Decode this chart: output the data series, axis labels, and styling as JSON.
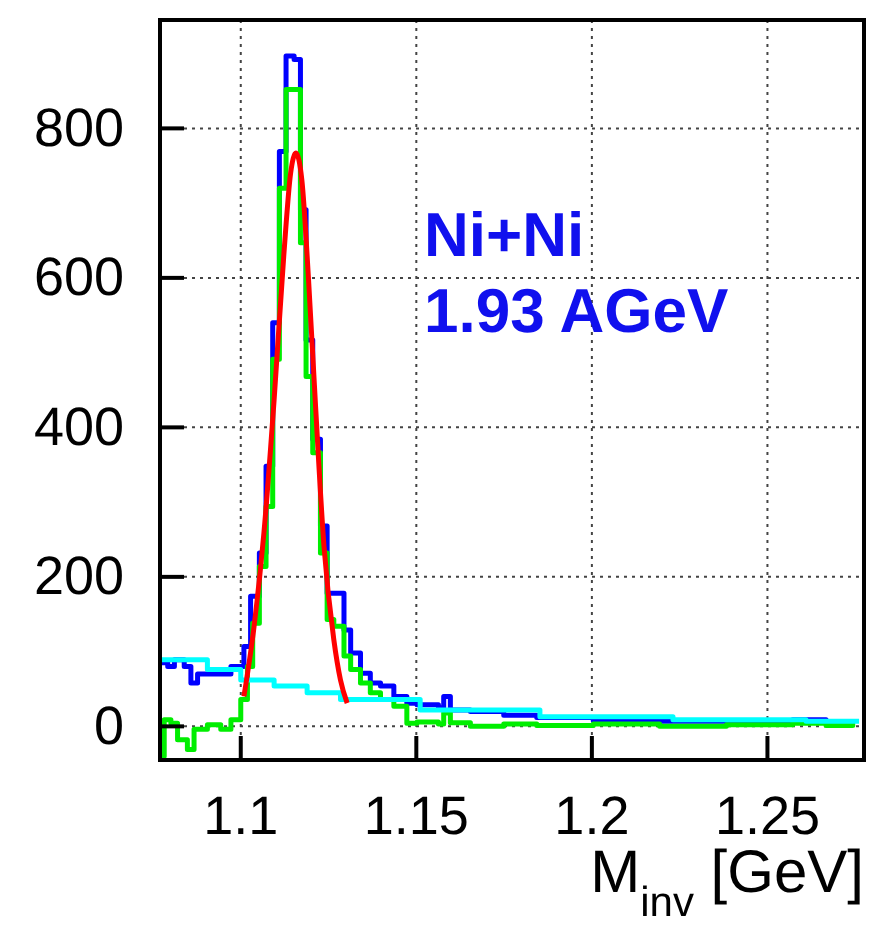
{
  "chart_data": {
    "type": "step",
    "xlabel": "M$_{inv}$ [GeV]",
    "annotations": [
      "Ni+Ni",
      "1.93 AGeV"
    ],
    "xlim": [
      1.077,
      1.2775
    ],
    "ylim": [
      -45,
      945
    ],
    "xticks": [
      1.1,
      1.15,
      1.2,
      1.25
    ],
    "yticks": [
      0,
      200,
      400,
      600,
      800
    ],
    "grid": true,
    "line_style": "solid",
    "marker": "none",
    "series": [
      {
        "type": "step",
        "color": "#0000ff",
        "x": [
          1.0773,
          1.0792,
          1.0811,
          1.0839,
          1.0858,
          1.0877,
          1.0972,
          1.1009,
          1.1028,
          1.1053,
          1.1072,
          1.1091,
          1.111,
          1.1129,
          1.1152,
          1.117,
          1.1186,
          1.1205,
          1.1227,
          1.1246,
          1.1265,
          1.1294,
          1.1313,
          1.1341,
          1.1369,
          1.1398,
          1.1436,
          1.1473,
          1.1502,
          1.1563,
          1.1578,
          1.1597,
          1.1654,
          1.1749,
          1.1843,
          1.2004,
          1.2193,
          1.2383,
          1.2572,
          1.2667,
          1.2743
        ],
        "values": [
          85,
          80,
          89,
          80,
          58,
          70,
          80,
          107,
          174,
          232,
          348,
          540,
          769,
          897,
          892,
          691,
          517,
          384,
          268,
          178,
          178,
          129,
          98,
          71,
          58,
          54,
          40,
          31,
          29,
          25,
          40,
          22,
          20,
          15,
          12,
          8,
          7,
          6,
          9,
          6,
          7
        ]
      },
      {
        "type": "step",
        "color": "#00ee00",
        "x": [
          1.0773,
          1.0782,
          1.0801,
          1.082,
          1.0848,
          1.0867,
          1.0905,
          1.0943,
          1.0972,
          1.1,
          1.1019,
          1.1034,
          1.1053,
          1.1072,
          1.1091,
          1.111,
          1.1129,
          1.117,
          1.1186,
          1.1205,
          1.1227,
          1.1246,
          1.1265,
          1.1294,
          1.1313,
          1.1341,
          1.1369,
          1.1398,
          1.1436,
          1.1473,
          1.1502,
          1.1563,
          1.1578,
          1.1597,
          1.1654,
          1.1749,
          1.1843,
          1.2004,
          1.2193,
          1.2383,
          1.2572,
          1.2667,
          1.2743
        ],
        "values": [
          -40,
          9,
          4,
          -18,
          -31,
          -4,
          2,
          -4,
          9,
          36,
          80,
          138,
          214,
          294,
          491,
          720,
          852,
          647,
          468,
          366,
          232,
          143,
          134,
          94,
          76,
          58,
          45,
          36,
          27,
          4,
          6,
          3,
          18,
          5,
          0,
          3,
          1,
          3,
          0,
          2,
          4,
          1,
          4
        ]
      },
      {
        "type": "step",
        "color": "#00ffff",
        "x": [
          1.0773,
          1.0905,
          1.1,
          1.1095,
          1.1189,
          1.1284,
          1.1511,
          1.1852,
          1.2231,
          1.261,
          1.2761
        ],
        "values": [
          89,
          76,
          62,
          54,
          45,
          36,
          22,
          13,
          9,
          7,
          7
        ]
      },
      {
        "type": "line",
        "color": "#ff0000",
        "x": [
          1.1009,
          1.1038,
          1.1066,
          1.1095,
          1.1123,
          1.1142,
          1.1157,
          1.1174,
          1.1193,
          1.1212,
          1.1237,
          1.1265,
          1.1284,
          1.1303
        ],
        "values": [
          40,
          134,
          259,
          437,
          633,
          740,
          767,
          731,
          598,
          437,
          241,
          116,
          62,
          31
        ]
      }
    ]
  }
}
